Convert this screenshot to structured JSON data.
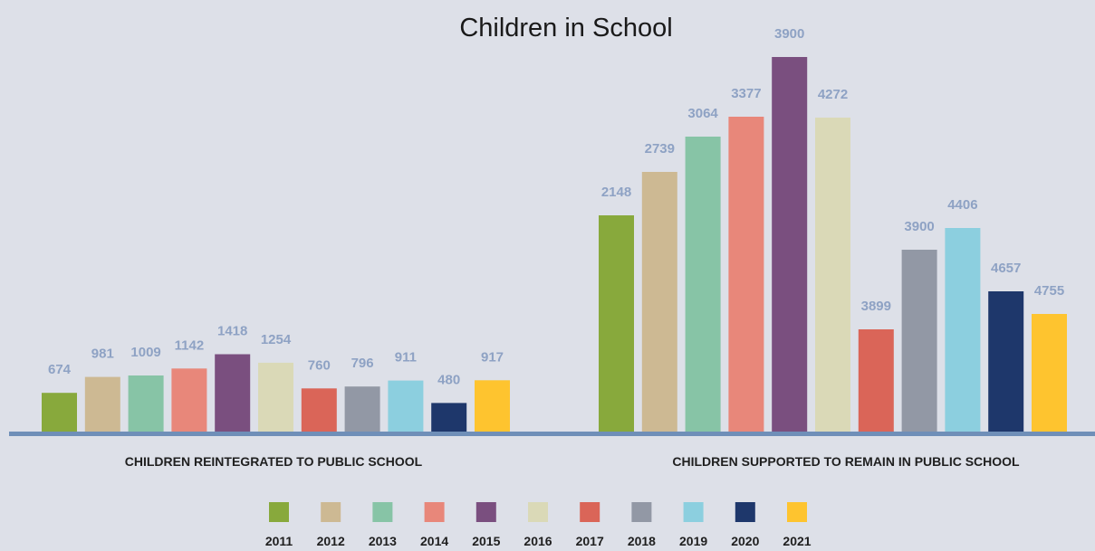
{
  "chart_data": {
    "type": "bar",
    "title": "Children in School",
    "legend_position": "bottom",
    "grid": false,
    "categories": [
      "2011",
      "2012",
      "2013",
      "2014",
      "2015",
      "2016",
      "2017",
      "2018",
      "2019",
      "2020",
      "2021"
    ],
    "colors": [
      "#88a93c",
      "#cdb993",
      "#87c4a6",
      "#e8877a",
      "#7a4f7f",
      "#dad9b7",
      "#da6558",
      "#9298a5",
      "#8ccfdf",
      "#1e376b",
      "#fec42f"
    ],
    "groups": [
      {
        "name": "CHILDREN REINTEGRATED TO PUBLIC SCHOOL",
        "values": [
          674,
          981,
          1009,
          1142,
          1418,
          1254,
          760,
          796,
          911,
          480,
          917
        ],
        "value_labels": [
          "674",
          "981",
          "1009",
          "1142",
          "1418",
          "1254",
          "760",
          "796",
          "911",
          "480",
          "917"
        ]
      },
      {
        "name": "CHILDREN SUPPORTED TO REMAIN IN PUBLIC SCHOOL",
        "values": [
          2148,
          2739,
          3064,
          3377,
          3900,
          4272,
          3899,
          3900,
          4406,
          4657,
          4755
        ],
        "value_labels": [
          "2148",
          "2739",
          "3064",
          "3377",
          "3900",
          "4272",
          "3899",
          "3900",
          "4406",
          "4657",
          "4755"
        ],
        "bar_heights_note": "bars drawn at relative visual heights"
      }
    ]
  }
}
